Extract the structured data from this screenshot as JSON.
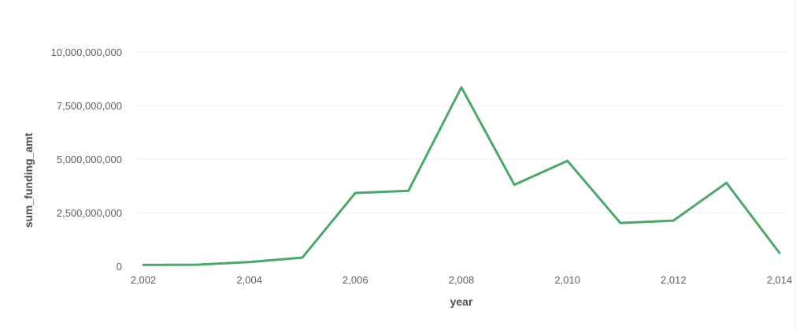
{
  "chart_data": {
    "type": "line",
    "title": "",
    "xlabel": "year",
    "ylabel": "sum_funding_amt",
    "x": [
      2002,
      2003,
      2004,
      2005,
      2006,
      2007,
      2008,
      2009,
      2010,
      2011,
      2012,
      2013,
      2014
    ],
    "series": [
      {
        "values": [
          60000000,
          70000000,
          190000000,
          400000000,
          3420000000,
          3520000000,
          8350000000,
          3800000000,
          4920000000,
          2020000000,
          2130000000,
          3890000000,
          620000000
        ]
      }
    ],
    "xlim": [
      2002,
      2014
    ],
    "ylim": [
      0,
      10000000000
    ],
    "x_ticks": [
      "2,002",
      "2,004",
      "2,006",
      "2,008",
      "2,010",
      "2,012",
      "2,014"
    ],
    "y_ticks": [
      "0",
      "2,500,000,000",
      "5,000,000,000",
      "7,500,000,000",
      "10,000,000,000"
    ],
    "grid": true,
    "line_color": "#4ea76a"
  }
}
